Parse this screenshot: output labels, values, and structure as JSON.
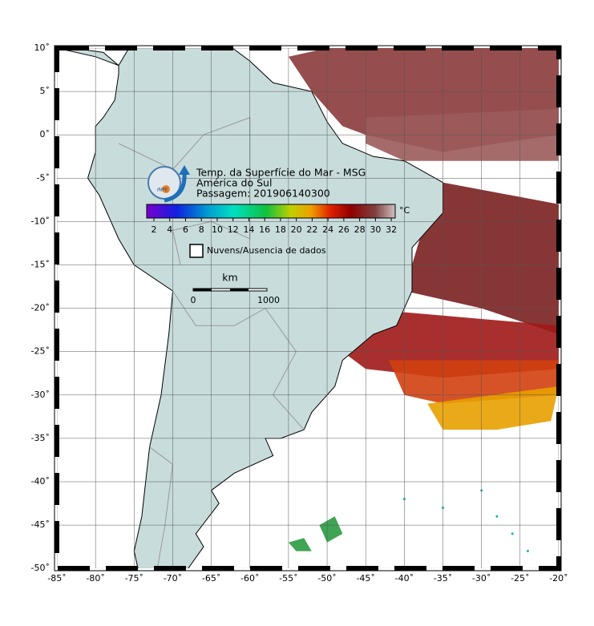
{
  "header": {
    "title": "Temp. da Superfície do Mar - MSG",
    "region": "América do Sul",
    "pass": "Passagem: 201906140300",
    "logo": "INPE"
  },
  "colorbar": {
    "unit": "°C",
    "ticks": [
      2,
      4,
      6,
      8,
      10,
      12,
      14,
      16,
      18,
      20,
      22,
      24,
      26,
      28,
      30,
      32
    ]
  },
  "legend": {
    "label": "Nuvens/Ausencia de dados"
  },
  "scale": {
    "unit": "km",
    "start": "0",
    "end": "1000"
  },
  "axes": {
    "lat_ticks": [
      {
        "value": 10,
        "label": "10˚"
      },
      {
        "value": 5,
        "label": "5˚"
      },
      {
        "value": 0,
        "label": "0˚"
      },
      {
        "value": -5,
        "label": "-5˚"
      },
      {
        "value": -10,
        "label": "-10˚"
      },
      {
        "value": -15,
        "label": "-15˚"
      },
      {
        "value": -20,
        "label": "-20˚"
      },
      {
        "value": -25,
        "label": "-25˚"
      },
      {
        "value": -30,
        "label": "-30˚"
      },
      {
        "value": -35,
        "label": "-35˚"
      },
      {
        "value": -40,
        "label": "-40˚"
      },
      {
        "value": -45,
        "label": "-45˚"
      },
      {
        "value": -50,
        "label": "-50˚"
      }
    ],
    "lon_ticks": [
      {
        "value": -85,
        "label": "-85˚"
      },
      {
        "value": -80,
        "label": "-80˚"
      },
      {
        "value": -75,
        "label": "-75˚"
      },
      {
        "value": -70,
        "label": "-70˚"
      },
      {
        "value": -65,
        "label": "-65˚"
      },
      {
        "value": -60,
        "label": "-60˚"
      },
      {
        "value": -55,
        "label": "-55˚"
      },
      {
        "value": -50,
        "label": "-50˚"
      },
      {
        "value": -45,
        "label": "-45˚"
      },
      {
        "value": -40,
        "label": "-40˚"
      },
      {
        "value": -35,
        "label": "-35˚"
      },
      {
        "value": -30,
        "label": "-30˚"
      },
      {
        "value": -25,
        "label": "-25˚"
      },
      {
        "value": -20,
        "label": "-20˚"
      }
    ]
  }
}
